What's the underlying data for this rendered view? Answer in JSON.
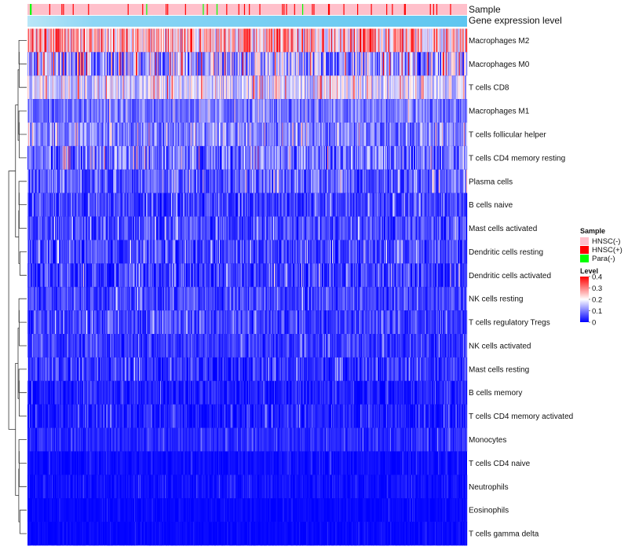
{
  "chart_data": {
    "type": "heatmap",
    "annotations": [
      {
        "name": "Sample",
        "type": "categorical",
        "categories": [
          "HNSC(-)",
          "HNSC(+)",
          "Para(-)"
        ],
        "colors": [
          "#ffc0cb",
          "#ff0000",
          "#00ff00"
        ]
      },
      {
        "name": "Gene expression level",
        "type": "continuous",
        "color": "#63c8f2"
      }
    ],
    "rows": [
      {
        "label": "Macrophages M2",
        "mean": 0.25,
        "spread": 0.13
      },
      {
        "label": "Macrophages M0",
        "mean": 0.13,
        "spread": 0.14
      },
      {
        "label": "T cells CD8",
        "mean": 0.17,
        "spread": 0.08
      },
      {
        "label": "Macrophages M1",
        "mean": 0.09,
        "spread": 0.06
      },
      {
        "label": "T cells follicular helper",
        "mean": 0.1,
        "spread": 0.07
      },
      {
        "label": "T cells CD4 memory resting",
        "mean": 0.09,
        "spread": 0.09
      },
      {
        "label": "Plasma cells",
        "mean": 0.07,
        "spread": 0.07
      },
      {
        "label": "B cells naive",
        "mean": 0.045,
        "spread": 0.06
      },
      {
        "label": "Mast cells activated",
        "mean": 0.05,
        "spread": 0.06
      },
      {
        "label": "Dendritic cells resting",
        "mean": 0.05,
        "spread": 0.06
      },
      {
        "label": "Dendritic cells activated",
        "mean": 0.04,
        "spread": 0.07
      },
      {
        "label": "NK cells resting",
        "mean": 0.05,
        "spread": 0.05
      },
      {
        "label": "T cells regulatory  Tregs",
        "mean": 0.05,
        "spread": 0.05
      },
      {
        "label": "NK cells activated",
        "mean": 0.04,
        "spread": 0.04
      },
      {
        "label": "Mast cells resting",
        "mean": 0.035,
        "spread": 0.05
      },
      {
        "label": "B cells memory",
        "mean": 0.02,
        "spread": 0.04
      },
      {
        "label": "T cells CD4 memory activated",
        "mean": 0.02,
        "spread": 0.04
      },
      {
        "label": "Monocytes",
        "mean": 0.03,
        "spread": 0.03
      },
      {
        "label": "T cells CD4 naive",
        "mean": 0.006,
        "spread": 0.02
      },
      {
        "label": "Neutrophils",
        "mean": 0.01,
        "spread": 0.02
      },
      {
        "label": "Eosinophils",
        "mean": 0.004,
        "spread": 0.012
      },
      {
        "label": "T cells gamma delta",
        "mean": 0.003,
        "spread": 0.012
      }
    ],
    "n_samples": 544,
    "legend": {
      "sample_title": "Sample",
      "level_title": "Level",
      "level_ticks": [
        0.4,
        0.3,
        0.2,
        0.1,
        0
      ],
      "level_ticks_text": [
        "0.4",
        "0.3",
        "0.2",
        "0.1",
        "0"
      ],
      "level_range": [
        0,
        0.4
      ],
      "palette": [
        "#0000ff",
        "#ffffff",
        "#ff0000"
      ]
    },
    "dendrogram": "row clustering tree on left"
  }
}
